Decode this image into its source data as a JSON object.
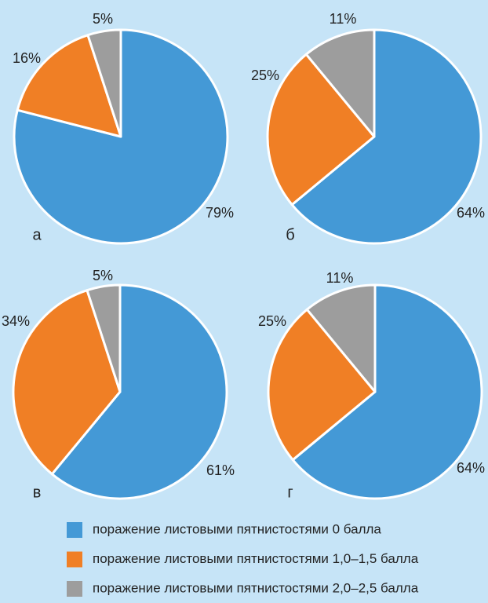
{
  "legend": {
    "items": [
      {
        "name": "поражение листовыми пятнистостями 0 балла",
        "color": "#4499d6"
      },
      {
        "name": "поражение листовыми пятнистостями 1,0–1,5 балла",
        "color": "#f07f25"
      },
      {
        "name": "поражение листовыми пятнистостями 2,0–2,5 балла",
        "color": "#9d9d9d"
      }
    ]
  },
  "chart_data": [
    {
      "type": "pie",
      "title": "а",
      "values": [
        79,
        16,
        5
      ],
      "value_labels": [
        "79%",
        "16%",
        "5%"
      ]
    },
    {
      "type": "pie",
      "title": "б",
      "values": [
        64,
        25,
        11
      ],
      "value_labels": [
        "64%",
        "25%",
        "11%"
      ]
    },
    {
      "type": "pie",
      "title": "в",
      "values": [
        61,
        34,
        5
      ],
      "value_labels": [
        "61%",
        "34%",
        "5%"
      ]
    },
    {
      "type": "pie",
      "title": "г",
      "values": [
        64,
        25,
        11
      ],
      "value_labels": [
        "64%",
        "25%",
        "11%"
      ]
    }
  ]
}
